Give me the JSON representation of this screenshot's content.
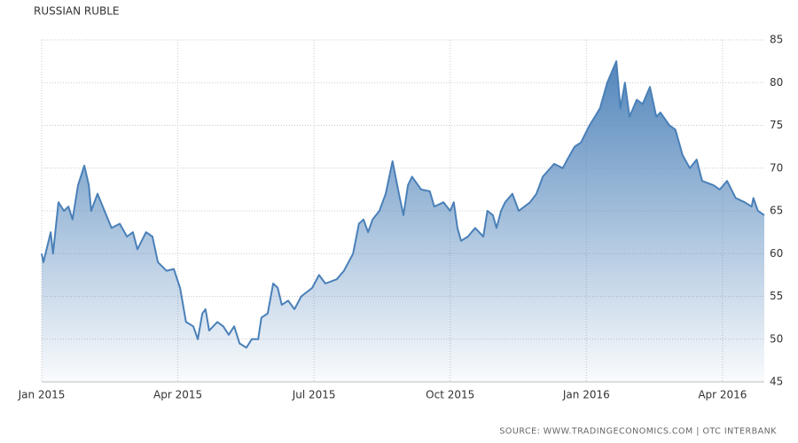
{
  "chart_data": {
    "type": "area",
    "title": "RUSSIAN RUBLE",
    "source": "SOURCE: WWW.TRADINGECONOMICS.COM | OTC INTERBANK",
    "color": "#4a80b8",
    "grid": true,
    "xlim": [
      0,
      15.92
    ],
    "xticks": [
      {
        "value": 0,
        "label": "Jan 2015"
      },
      {
        "value": 3,
        "label": "Apr 2015"
      },
      {
        "value": 6,
        "label": "Jul 2015"
      },
      {
        "value": 9,
        "label": "Oct 2015"
      },
      {
        "value": 12,
        "label": "Jan 2016"
      },
      {
        "value": 15,
        "label": "Apr 2016"
      }
    ],
    "ylim": [
      45,
      85
    ],
    "yticks": [
      45,
      50,
      55,
      60,
      65,
      70,
      75,
      80,
      85
    ],
    "x": [
      0,
      0.04,
      0.2,
      0.25,
      0.37,
      0.49,
      0.59,
      0.68,
      0.8,
      0.94,
      1.04,
      1.09,
      1.23,
      1.54,
      1.72,
      1.88,
      2.01,
      2.11,
      2.3,
      2.44,
      2.56,
      2.75,
      2.91,
      3.05,
      3.18,
      3.34,
      3.44,
      3.54,
      3.61,
      3.69,
      3.87,
      4.0,
      4.12,
      4.24,
      4.36,
      4.51,
      4.63,
      4.77,
      4.84,
      4.98,
      5.1,
      5.2,
      5.29,
      5.43,
      5.57,
      5.72,
      5.96,
      6.11,
      6.25,
      6.5,
      6.66,
      6.86,
      6.99,
      7.09,
      7.19,
      7.29,
      7.44,
      7.58,
      7.73,
      7.87,
      7.97,
      8.07,
      8.16,
      8.36,
      8.55,
      8.65,
      8.85,
      9.0,
      9.08,
      9.16,
      9.24,
      9.39,
      9.55,
      9.73,
      9.82,
      9.94,
      10.02,
      10.12,
      10.21,
      10.37,
      10.51,
      10.76,
      10.9,
      11.04,
      11.29,
      11.48,
      11.58,
      11.74,
      11.88,
      12.07,
      12.3,
      12.46,
      12.66,
      12.75,
      12.85,
      12.95,
      13.11,
      13.24,
      13.4,
      13.54,
      13.63,
      13.83,
      13.96,
      14.12,
      14.28,
      14.43,
      14.55,
      14.8,
      14.94,
      15.1,
      15.29,
      15.49,
      15.64,
      15.68,
      15.78,
      15.92
    ],
    "values": [
      60,
      59,
      62.5,
      60,
      66,
      65,
      65.5,
      64,
      68,
      70.3,
      68,
      65,
      67,
      63,
      63.5,
      62,
      62.5,
      60.5,
      62.5,
      62,
      59,
      58,
      58.2,
      56,
      52,
      51.5,
      50,
      53,
      53.5,
      51,
      52,
      51.5,
      50.5,
      51.5,
      49.5,
      49,
      50,
      50,
      52.5,
      53,
      56.5,
      56,
      54,
      54.5,
      53.5,
      55,
      56,
      57.5,
      56.5,
      57,
      58,
      60,
      63.5,
      64,
      62.5,
      64,
      65,
      67,
      70.8,
      67,
      64.5,
      68,
      69,
      67.5,
      67.3,
      65.5,
      66,
      65,
      66,
      63,
      61.5,
      62,
      63,
      62,
      65,
      64.5,
      63,
      65,
      66,
      67,
      65,
      66,
      67,
      69,
      70.5,
      70,
      71,
      72.5,
      73,
      75,
      77,
      80,
      82.5,
      77,
      80,
      76,
      78,
      77.5,
      79.5,
      76,
      76.5,
      75,
      74.5,
      71.5,
      70,
      71,
      68.5,
      68,
      67.5,
      68.5,
      66.5,
      66,
      65.5,
      66.5,
      65,
      64.5
    ]
  }
}
